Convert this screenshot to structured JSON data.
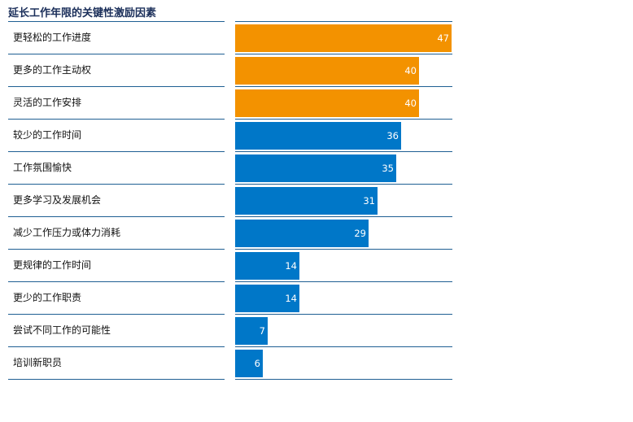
{
  "chart_data": {
    "type": "bar",
    "orientation": "horizontal",
    "title": "延长工作年限的关键性激励因素",
    "categories": [
      "更轻松的工作进度",
      "更多的工作主动权",
      "灵活的工作安排",
      "较少的工作时间",
      "工作氛围愉快",
      "更多学习及发展机会",
      "减少工作压力或体力消耗",
      "更规律的工作时间",
      "更少的工作职责",
      "尝试不同工作的可能性",
      "培训新职员"
    ],
    "values": [
      47,
      40,
      40,
      36,
      35,
      31,
      29,
      14,
      14,
      7,
      6
    ],
    "highlight_count": 3,
    "colors": {
      "highlight": "#F39200",
      "default": "#0077C8",
      "row_line": "#1F5F93",
      "title": "#1B2F5A"
    },
    "xlim": [
      0,
      47
    ],
    "grid": false,
    "legend": "none"
  }
}
